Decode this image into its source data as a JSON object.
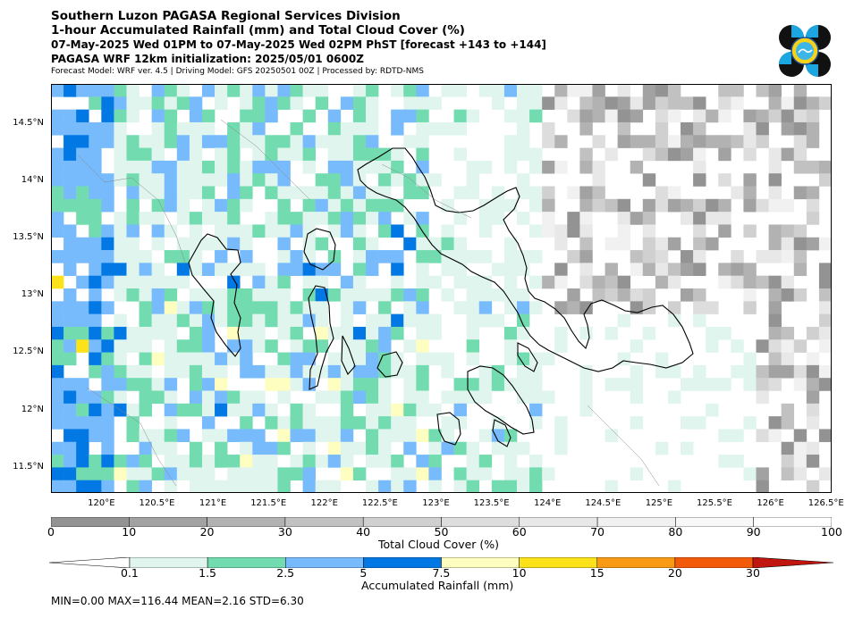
{
  "header": {
    "title": "Southern Luzon PAGASA Regional Services Division",
    "subtitle": "1-hour Accumulated Rainfall (mm) and Total Cloud Cover (%)",
    "valid_time": "07-May-2025 Wed 01PM to 07-May-2025 Wed 02PM PhST [forecast +143 to +144]",
    "initialization": "PAGASA WRF 12km initialization: 2025/05/01 0600Z",
    "model_info": "Forecast Model: WRF ver. 4.5 | Driving Model: GFS 20250501 00Z | Processed by: RDTD-NMS"
  },
  "map": {
    "lon_range": [
      119.55,
      126.55
    ],
    "lat_range": [
      11.28,
      14.85
    ],
    "lon_ticks": [
      "120°E",
      "120.5°E",
      "121°E",
      "121.5°E",
      "122°E",
      "122.5°E",
      "123°E",
      "123.5°E",
      "124°E",
      "124.5°E",
      "125°E",
      "125.5°E",
      "126°E",
      "126.5°E"
    ],
    "lat_ticks": [
      "14.5°N",
      "14°N",
      "13.5°N",
      "13°N",
      "12.5°N",
      "12°N",
      "11.5°N"
    ],
    "lon_tick_values": [
      120,
      120.5,
      121,
      121.5,
      122,
      122.5,
      123,
      123.5,
      124,
      124.5,
      125,
      125.5,
      126,
      126.5
    ],
    "lat_tick_values": [
      14.5,
      14,
      13.5,
      13,
      12.5,
      12,
      11.5
    ]
  },
  "cloud_colorbar": {
    "label": "Total Cloud Cover (%)",
    "ticks": [
      "0",
      "10",
      "20",
      "30",
      "40",
      "50",
      "60",
      "70",
      "80",
      "90",
      "100"
    ],
    "colors": [
      "#939393",
      "#a2a2a2",
      "#b2b2b2",
      "#c1c1c1",
      "#d0d0d0",
      "#dddddd",
      "#e8e8e8",
      "#f1f1f1",
      "#f8f8f8",
      "#ffffff"
    ]
  },
  "rain_colorbar": {
    "label": "Accumulated Rainfall (mm)",
    "ticks": [
      "0.1",
      "1.5",
      "2.5",
      "5",
      "7.5",
      "10",
      "15",
      "20",
      "30"
    ],
    "colors": [
      "#ffffff",
      "#dff5ee",
      "#72dcb0",
      "#77bbfc",
      "#0278e4",
      "#fefec0",
      "#fbe219",
      "#f99a14",
      "#f35b0b",
      "#c1160f"
    ]
  },
  "stats": {
    "text": "MIN=0.00   MAX=116.44   MEAN=2.16   STD=6.30"
  }
}
